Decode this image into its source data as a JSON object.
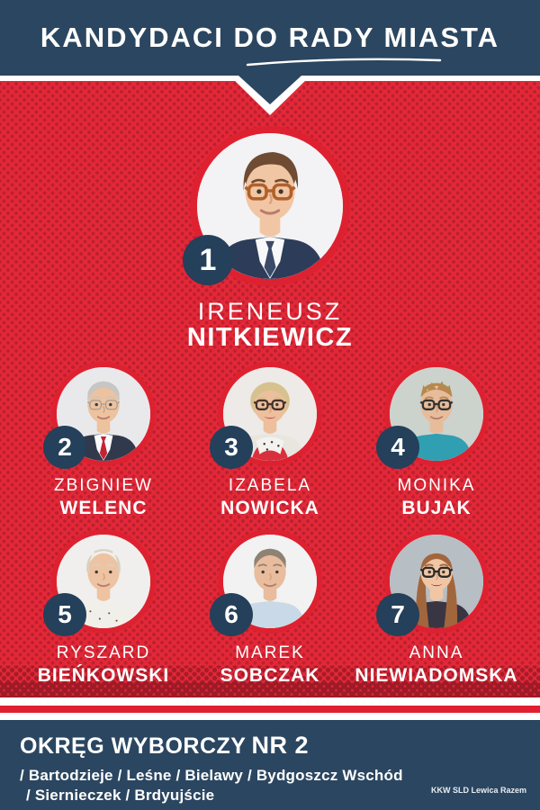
{
  "poster": {
    "title": "KANDYDACI DO RADY MIASTA",
    "colors": {
      "navy": "#2b4660",
      "badge_navy": "#24405a",
      "red_base": "#e32837",
      "red_dot": "#bc2030",
      "ring_red": "#de2130",
      "white": "#ffffff"
    },
    "candidates": [
      {
        "number": "1",
        "first_name": "IRENEUSZ",
        "last_name": "NITKIEWICZ",
        "avatar": {
          "bg": "#f3f2f4",
          "skin": "#f1c6a4",
          "hair": "#6e4b32",
          "style": "side",
          "top": "#2c3c59",
          "shirt": "#f8f8fa",
          "tie": "#3a4a68",
          "glasses": "#b2602a"
        }
      },
      {
        "number": "2",
        "first_name": "ZBIGNIEW",
        "last_name": "WELENC",
        "avatar": {
          "bg": "#e9e9ec",
          "skin": "#edc29e",
          "hair": "#c8c6c2",
          "style": "short",
          "top": "#303a4c",
          "shirt": "#fafafa",
          "tie": "#c32434",
          "glasses": "#9a9a9a",
          "rimless": true
        }
      },
      {
        "number": "3",
        "first_name": "IZABELA",
        "last_name": "NOWICKA",
        "avatar": {
          "bg": "#edeae8",
          "skin": "#edbf9d",
          "hair": "#d6c28e",
          "style": "bob",
          "top": "#e9e5df",
          "glasses": "#43332c",
          "lip": "#c2273a",
          "extra": "scarf"
        }
      },
      {
        "number": "4",
        "first_name": "MONIKA",
        "last_name": "BUJAK",
        "avatar": {
          "bg": "#ccd2cc",
          "skin": "#e7bc9b",
          "hair": "#b5894e",
          "style": "spiky",
          "top": "#2f9fb1",
          "glasses": "#333333"
        }
      },
      {
        "number": "5",
        "first_name": "RYSZARD",
        "last_name": "BIEŃKOWSKI",
        "avatar": {
          "bg": "#f0efed",
          "skin": "#edc3a2",
          "hair": "#d8d1c2",
          "style": "bald",
          "top": "#f1efe9",
          "extra": "pattern"
        }
      },
      {
        "number": "6",
        "first_name": "MAREK",
        "last_name": "SOBCZAK",
        "avatar": {
          "bg": "#f2f2f2",
          "skin": "#e8bc9d",
          "hair": "#8e8273",
          "style": "short",
          "top": "#c9d9e7"
        }
      },
      {
        "number": "7",
        "first_name": "ANNA",
        "last_name": "NIEWIADOMSKA",
        "avatar": {
          "bg": "#b7bec4",
          "skin": "#f0c6a5",
          "hair": "#a2663d",
          "style": "long",
          "top": "#3a3542",
          "glasses": "#2b2b2b",
          "lip": "#a31f35"
        }
      }
    ],
    "footer": {
      "district_label": "OKRĘG WYBORCZY",
      "district_number": "NR 2",
      "areas_line1": "/ Bartodzieje / Leśne / Bielawy / Bydgoszcz Wschód",
      "areas_line2": "/ Siernieczek / Brdyujście",
      "committee": "KKW SLD Lewica Razem"
    }
  }
}
